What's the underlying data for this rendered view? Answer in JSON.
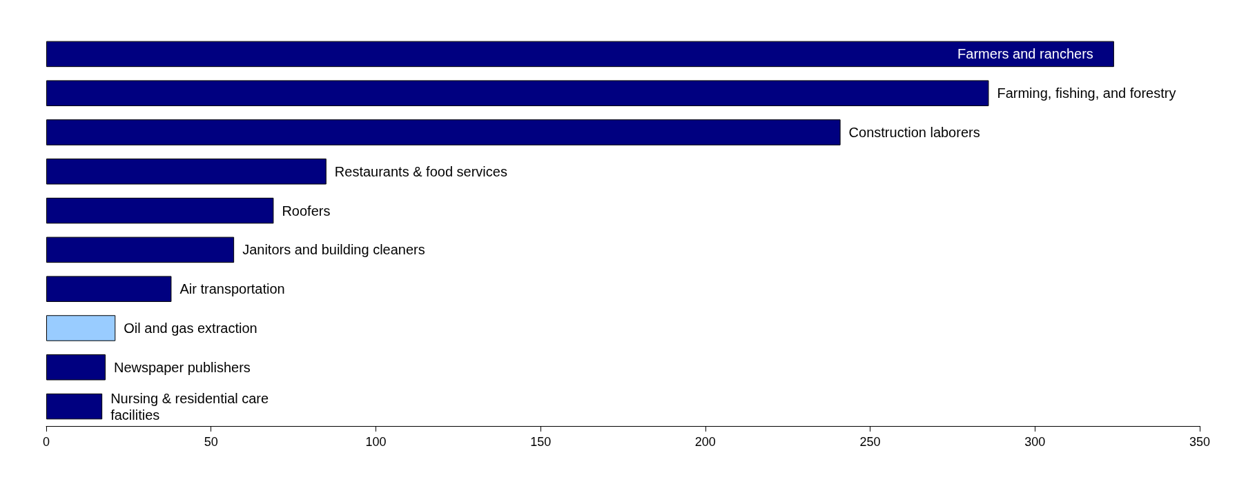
{
  "chart_data": {
    "type": "bar",
    "orientation": "horizontal",
    "categories": [
      "Farmers and ranchers",
      "Farming, fishing, and forestry",
      "Construction laborers",
      "Restaurants & food services",
      "Roofers",
      "Janitors and building cleaners",
      "Air transportation",
      "Oil and gas extraction",
      "Newspaper publishers",
      "Nursing & residential care facilities"
    ],
    "values": [
      324,
      286,
      241,
      85,
      69,
      57,
      38,
      21,
      18,
      17
    ],
    "colors": [
      "#000080",
      "#000080",
      "#000080",
      "#000080",
      "#000080",
      "#000080",
      "#000080",
      "#99ccff",
      "#000080",
      "#000080"
    ],
    "xlim": [
      0,
      350
    ],
    "xticks": [
      0,
      50,
      100,
      150,
      200,
      250,
      300,
      350
    ],
    "grid": false
  }
}
